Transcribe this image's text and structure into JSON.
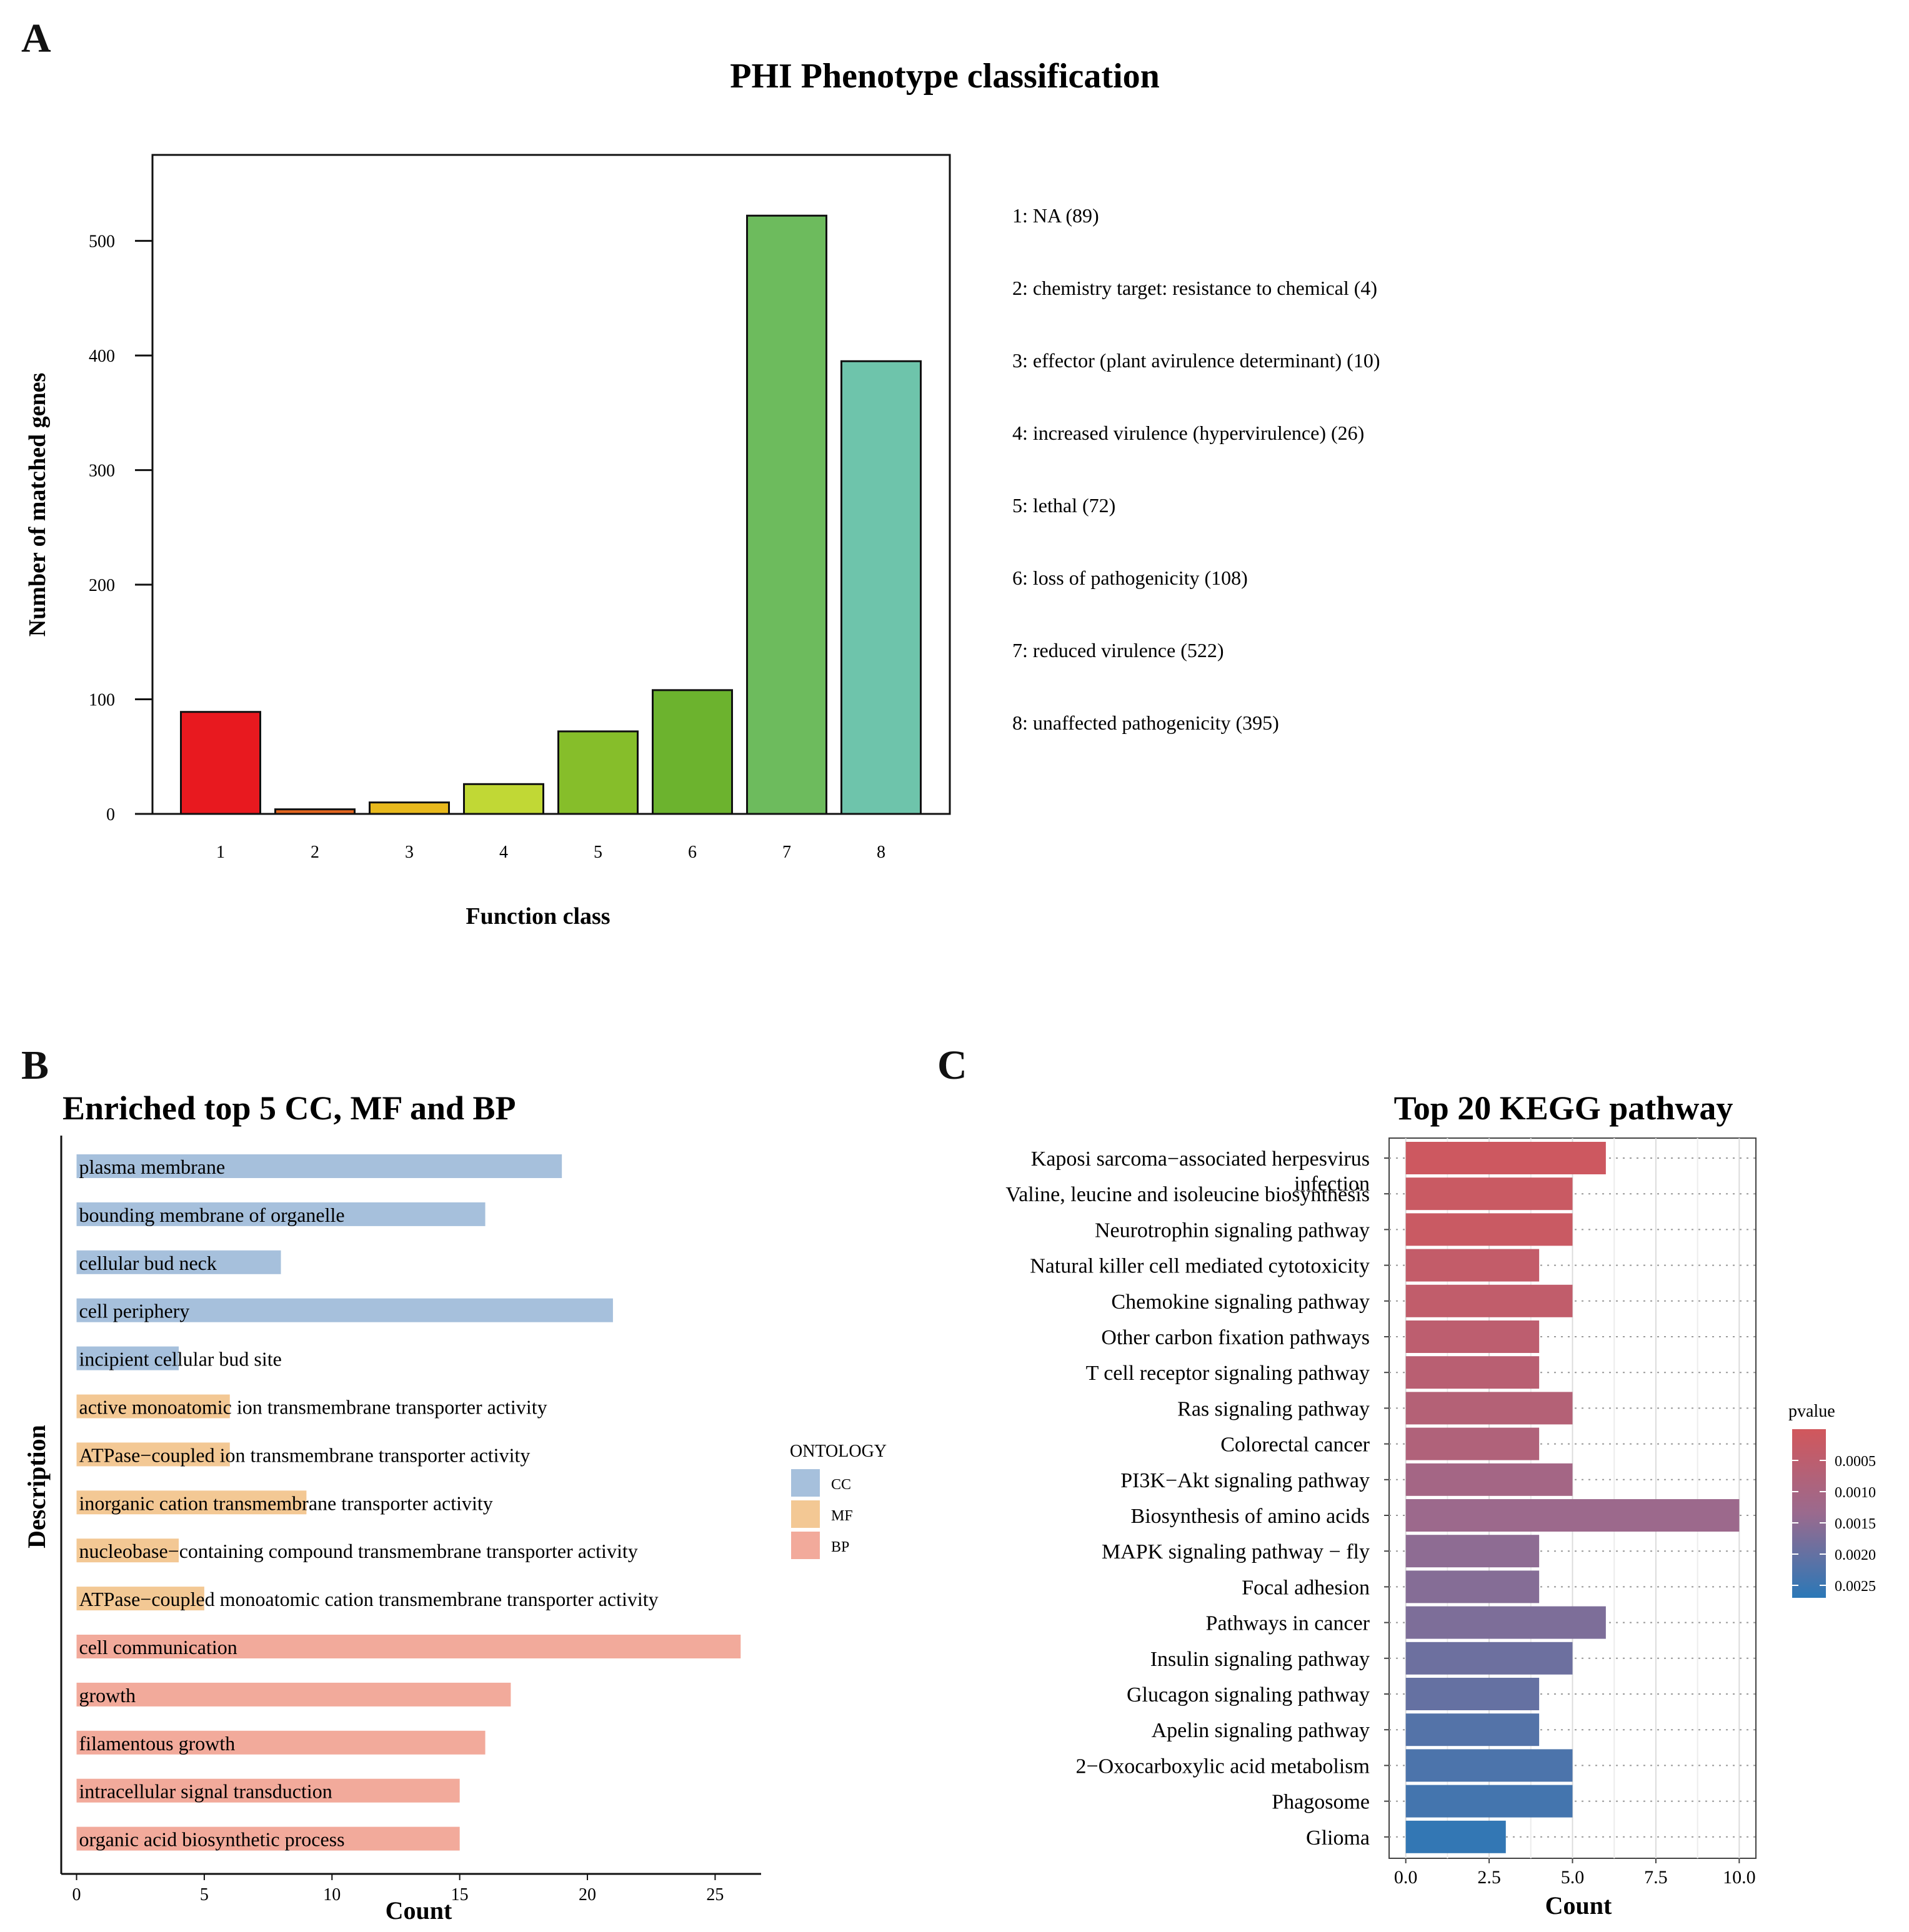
{
  "panels": {
    "a": "A",
    "b": "B",
    "c": "C"
  },
  "colors": {
    "bg": "#ffffff",
    "axis": "#111111",
    "cc": "#a6c0dc",
    "mf": "#f3c894",
    "bp": "#f2aa9b",
    "pv_low": "#d1575c",
    "pv_mid": "#9a6a8e",
    "pv_high": "#2b78b7"
  },
  "chart_data": [
    {
      "id": "phi",
      "type": "bar",
      "title": "PHI Phenotype classification",
      "xlabel": "Function class",
      "ylabel": "Number of matched genes",
      "ylim": [
        0,
        575
      ],
      "yticks": [
        0,
        100,
        200,
        300,
        400,
        500
      ],
      "categories": [
        "1",
        "2",
        "3",
        "4",
        "5",
        "6",
        "7",
        "8"
      ],
      "values": [
        89,
        4,
        10,
        26,
        72,
        108,
        522,
        395
      ],
      "bar_colors": [
        "#e8191f",
        "#e3661f",
        "#e8b91d",
        "#c1d835",
        "#86be2a",
        "#6cb32e",
        "#6dbb5d",
        "#6ec4ab"
      ],
      "legend": [
        "1: NA   (89)",
        "2: chemistry target: resistance to chemical   (4)",
        "3: effector (plant avirulence determinant)   (10)",
        "4: increased virulence (hypervirulence)   (26)",
        "5: lethal   (72)",
        "6: loss of pathogenicity   (108)",
        "7: reduced virulence   (522)",
        "8: unaffected pathogenicity   (395)"
      ]
    },
    {
      "id": "go",
      "type": "bar",
      "orientation": "horizontal",
      "title": "Enriched top 5 CC, MF and BP",
      "xlabel": "Count",
      "ylabel": "Description",
      "xlim": [
        -0.6,
        26.8
      ],
      "xticks": [
        0,
        5,
        10,
        15,
        20,
        25
      ],
      "legend_title": "ONTOLOGY",
      "legend": [
        {
          "label": "CC",
          "color": "#a6c0dc"
        },
        {
          "label": "MF",
          "color": "#f3c894"
        },
        {
          "label": "BP",
          "color": "#f2aa9b"
        }
      ],
      "categories": [
        "plasma membrane",
        "bounding membrane of organelle",
        "cellular bud neck",
        "cell periphery",
        "incipient cellular bud site",
        "active monoatomic ion transmembrane transporter activity",
        "ATPase−coupled ion transmembrane transporter activity",
        "inorganic cation transmembrane transporter activity",
        "nucleobase−containing compound transmembrane transporter activity",
        "ATPase−coupled monoatomic cation transmembrane transporter activity",
        "cell communication",
        "growth",
        "filamentous growth",
        "intracellular signal transduction",
        "organic acid biosynthetic process"
      ],
      "values": [
        19,
        16,
        8,
        21,
        4,
        6,
        6,
        9,
        4,
        5,
        26,
        17,
        16,
        15,
        15
      ],
      "ontology": [
        "CC",
        "CC",
        "CC",
        "CC",
        "CC",
        "MF",
        "MF",
        "MF",
        "MF",
        "MF",
        "BP",
        "BP",
        "BP",
        "BP",
        "BP"
      ]
    },
    {
      "id": "kegg",
      "type": "bar",
      "orientation": "horizontal",
      "title": "Top 20 KEGG pathway",
      "xlabel": "Count",
      "xlim": [
        -0.5,
        10.5
      ],
      "xticks": [
        0,
        2.5,
        5,
        7.5,
        10
      ],
      "xtick_labels": [
        "0.0",
        "2.5",
        "5.0",
        "7.5",
        "10.0"
      ],
      "colorbar_title": "pvalue",
      "colorbar_range": [
        0,
        0.0027
      ],
      "colorbar_ticks": [
        0.0005,
        0.001,
        0.0015,
        0.002,
        0.0025
      ],
      "colorbar_tick_labels": [
        "0.0005",
        "0.0010",
        "0.0015",
        "0.0020",
        "0.0025"
      ],
      "categories": [
        [
          "Kaposi sarcoma−associated herpesvirus",
          "infection"
        ],
        [
          "Valine, leucine and isoleucine biosynthesis"
        ],
        [
          "Neurotrophin signaling pathway"
        ],
        [
          "Natural killer cell mediated cytotoxicity"
        ],
        [
          "Chemokine signaling pathway"
        ],
        [
          "Other carbon fixation pathways"
        ],
        [
          "T cell receptor signaling pathway"
        ],
        [
          "Ras signaling pathway"
        ],
        [
          "Colorectal cancer"
        ],
        [
          "PI3K−Akt signaling pathway"
        ],
        [
          "Biosynthesis of amino acids"
        ],
        [
          "MAPK signaling pathway − fly"
        ],
        [
          "Focal adhesion"
        ],
        [
          "Pathways in cancer"
        ],
        [
          "Insulin signaling pathway"
        ],
        [
          "Glucagon signaling pathway"
        ],
        [
          "Apelin signaling pathway"
        ],
        [
          "2−Oxocarboxylic acid metabolism"
        ],
        [
          "Phagosome"
        ],
        [
          "Glioma"
        ]
      ],
      "values": [
        6,
        5,
        5,
        4,
        5,
        4,
        4,
        5,
        4,
        5,
        10,
        4,
        4,
        6,
        5,
        4,
        4,
        5,
        5,
        3
      ],
      "pvalues": [
        0.0001,
        0.0002,
        0.0002,
        0.00035,
        0.0004,
        0.0005,
        0.0006,
        0.0007,
        0.0008,
        0.0011,
        0.0013,
        0.0015,
        0.0016,
        0.0017,
        0.0019,
        0.002,
        0.0022,
        0.0023,
        0.0024,
        0.0026
      ]
    }
  ]
}
